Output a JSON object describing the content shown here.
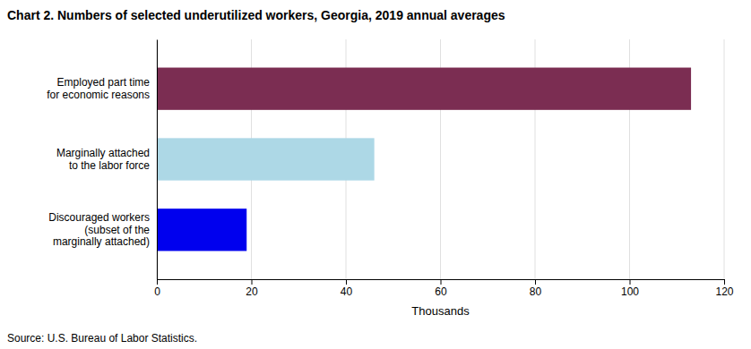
{
  "chart_data": {
    "type": "bar",
    "orientation": "horizontal",
    "title": "Chart 2. Numbers of selected underutilized workers, Georgia, 2019 annual averages",
    "categories": [
      "Discouraged workers\n(subset of the\nmarginally attached)",
      "Marginally attached\nto the labor force",
      "Employed part time\nfor economic reasons"
    ],
    "values": [
      19,
      46,
      113
    ],
    "colors": [
      "#0000ee",
      "#add8e6",
      "#7b2d52"
    ],
    "xlabel": "Thousands",
    "xlim": [
      0,
      120
    ],
    "xticks": [
      0,
      20,
      40,
      60,
      80,
      100,
      120
    ],
    "grid": true,
    "annotations": [
      "Source: U.S. Bureau of Labor Statistics."
    ]
  }
}
